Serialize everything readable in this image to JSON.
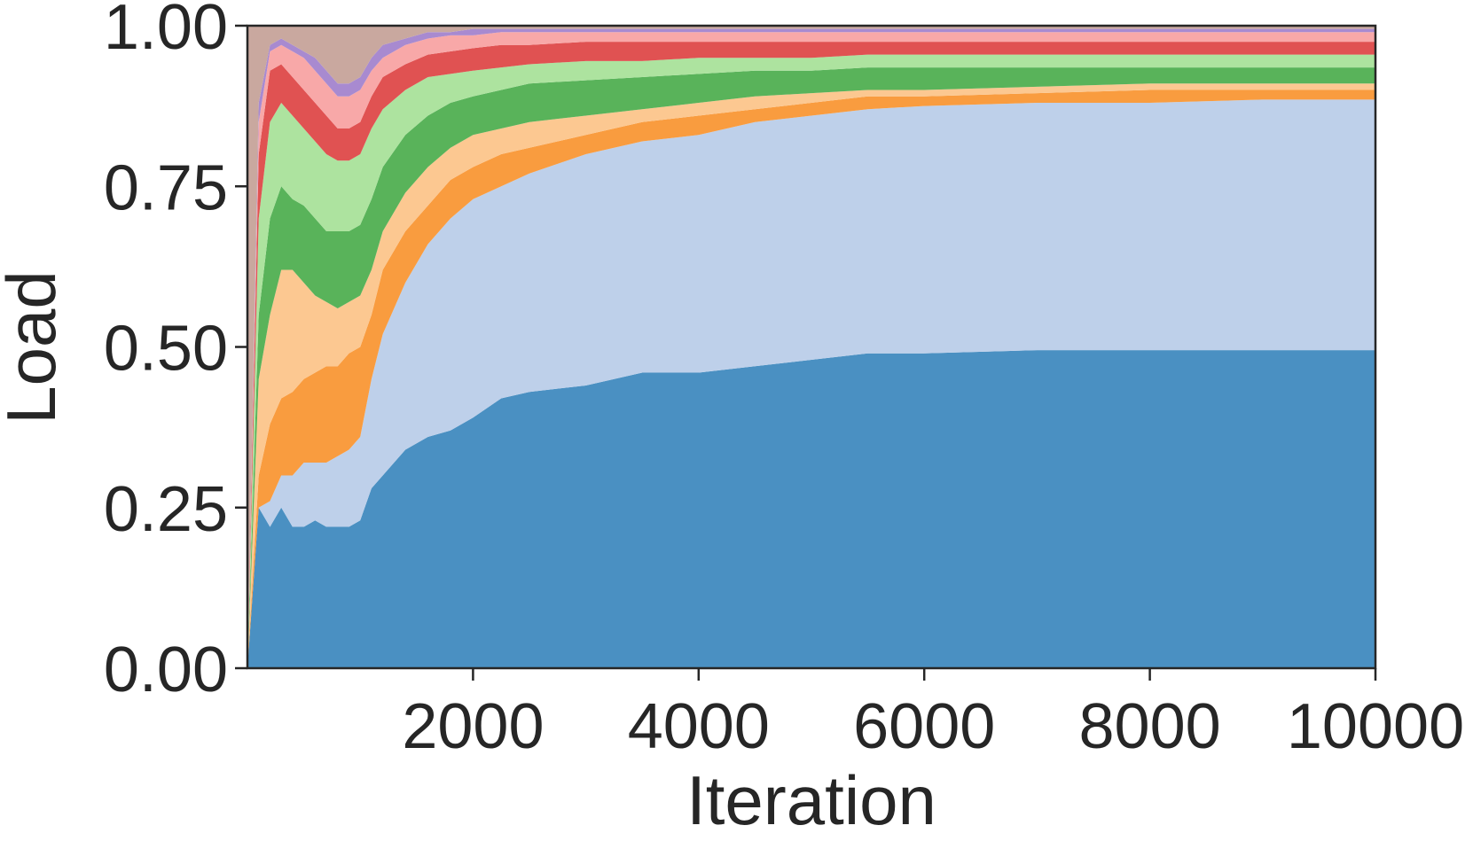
{
  "chart_data": {
    "type": "stacked_area",
    "x_label": "Iteration",
    "y_label": "Load",
    "xlim": [
      0,
      10000
    ],
    "xticks": [
      2000,
      4000,
      6000,
      8000,
      10000
    ],
    "ylim": [
      0,
      1
    ],
    "yticks": [
      {
        "value": 0,
        "label": "0.00"
      },
      0.25,
      {
        "value": 0.5,
        "label": "0.50"
      },
      0.75,
      {
        "value": 1,
        "label": "1.00"
      }
    ],
    "x": [
      0,
      100,
      200,
      300,
      400,
      500,
      600,
      700,
      800,
      900,
      1000,
      1100,
      1200,
      1400,
      1600,
      1800,
      2000,
      2250,
      2500,
      3000,
      3500,
      4000,
      4500,
      5000,
      5500,
      6000,
      7000,
      8000,
      9000,
      10000
    ],
    "series": [
      {
        "color": "#4a90c2",
        "values": [
          0,
          0.25,
          0.22,
          0.25,
          0.22,
          0.22,
          0.23,
          0.22,
          0.22,
          0.22,
          0.23,
          0.28,
          0.3,
          0.34,
          0.36,
          0.37,
          0.39,
          0.42,
          0.43,
          0.44,
          0.46,
          0.46,
          0.47,
          0.48,
          0.49,
          0.49,
          0.495,
          0.495,
          0.495,
          0.495
        ]
      },
      {
        "color": "#bed0ea",
        "values": [
          0,
          0,
          0.04,
          0.05,
          0.08,
          0.1,
          0.09,
          0.1,
          0.11,
          0.12,
          0.13,
          0.17,
          0.22,
          0.26,
          0.3,
          0.33,
          0.34,
          0.33,
          0.34,
          0.36,
          0.36,
          0.37,
          0.38,
          0.38,
          0.38,
          0.385,
          0.385,
          0.385,
          0.39,
          0.39
        ]
      },
      {
        "color": "#f99c3f",
        "values": [
          0,
          0.05,
          0.12,
          0.12,
          0.13,
          0.13,
          0.14,
          0.15,
          0.14,
          0.15,
          0.14,
          0.1,
          0.1,
          0.08,
          0.06,
          0.06,
          0.05,
          0.05,
          0.04,
          0.03,
          0.03,
          0.03,
          0.02,
          0.02,
          0.02,
          0.015,
          0.015,
          0.02,
          0.015,
          0.015
        ]
      },
      {
        "color": "#fcc891",
        "values": [
          0,
          0.15,
          0.17,
          0.2,
          0.19,
          0.15,
          0.12,
          0.1,
          0.09,
          0.08,
          0.08,
          0.07,
          0.06,
          0.06,
          0.06,
          0.05,
          0.05,
          0.04,
          0.04,
          0.03,
          0.02,
          0.02,
          0.02,
          0.015,
          0.01,
          0.01,
          0.01,
          0.01,
          0.01,
          0.01
        ]
      },
      {
        "color": "#59b35a",
        "values": [
          0,
          0.1,
          0.15,
          0.13,
          0.11,
          0.12,
          0.12,
          0.11,
          0.12,
          0.11,
          0.11,
          0.11,
          0.1,
          0.09,
          0.08,
          0.07,
          0.06,
          0.06,
          0.06,
          0.055,
          0.05,
          0.045,
          0.04,
          0.035,
          0.035,
          0.035,
          0.03,
          0.025,
          0.025,
          0.025
        ]
      },
      {
        "color": "#ade39f",
        "values": [
          0,
          0.15,
          0.15,
          0.13,
          0.13,
          0.12,
          0.12,
          0.12,
          0.11,
          0.11,
          0.11,
          0.11,
          0.09,
          0.07,
          0.06,
          0.045,
          0.04,
          0.035,
          0.03,
          0.03,
          0.025,
          0.025,
          0.02,
          0.02,
          0.02,
          0.02,
          0.02,
          0.02,
          0.02,
          0.02
        ]
      },
      {
        "color": "#e05252",
        "values": [
          0,
          0.1,
          0.08,
          0.06,
          0.06,
          0.06,
          0.06,
          0.06,
          0.05,
          0.05,
          0.05,
          0.05,
          0.05,
          0.04,
          0.035,
          0.035,
          0.035,
          0.035,
          0.03,
          0.03,
          0.03,
          0.025,
          0.025,
          0.025,
          0.02,
          0.02,
          0.02,
          0.02,
          0.02,
          0.02
        ]
      },
      {
        "color": "#f8a8a8",
        "values": [
          0,
          0.05,
          0.03,
          0.03,
          0.04,
          0.05,
          0.05,
          0.05,
          0.05,
          0.05,
          0.05,
          0.04,
          0.03,
          0.03,
          0.025,
          0.025,
          0.02,
          0.02,
          0.02,
          0.015,
          0.015,
          0.015,
          0.015,
          0.015,
          0.015,
          0.015,
          0.015,
          0.015,
          0.015,
          0.015
        ]
      },
      {
        "color": "#a88ad0",
        "values": [
          0,
          0.03,
          0.01,
          0.01,
          0.01,
          0.01,
          0.02,
          0.02,
          0.02,
          0.02,
          0.02,
          0.02,
          0.02,
          0.01,
          0.01,
          0.005,
          0.01,
          0.005,
          0.005,
          0.005,
          0.005,
          0.005,
          0.005,
          0.005,
          0.005,
          0.005,
          0.005,
          0.005,
          0.005,
          0.005
        ]
      },
      {
        "color": "#c9a89f",
        "values": [
          1,
          0.12,
          0.03,
          0.02,
          0.03,
          0.04,
          0.05,
          0.07,
          0.09,
          0.09,
          0.08,
          0.05,
          0.03,
          0.02,
          0.01,
          0.01,
          0.005,
          0.005,
          0.005,
          0.005,
          0.005,
          0.005,
          0.005,
          0.005,
          0.005,
          0.005,
          0.005,
          0.005,
          0.005,
          0.005
        ]
      }
    ]
  }
}
